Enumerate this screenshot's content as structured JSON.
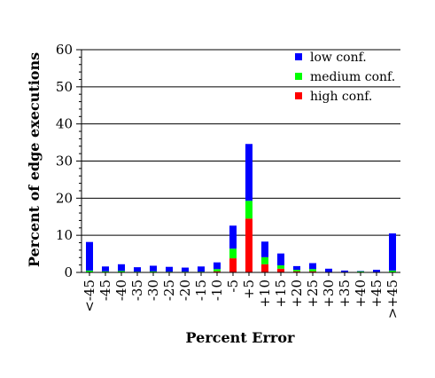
{
  "chart_data": {
    "type": "bar",
    "stacked": true,
    "xlabel": "Percent Error",
    "ylabel": "Percent of edge executions",
    "ylim": [
      0,
      60
    ],
    "yticks": [
      0,
      10,
      20,
      30,
      40,
      50,
      60
    ],
    "grid": "horizontal",
    "legend_position": "top-right",
    "categories": [
      "<-45",
      "-45",
      "-40",
      "-35",
      "-30",
      "-25",
      "-20",
      "-15",
      "-10",
      "-5",
      "+5",
      "+10",
      "+15",
      "+20",
      "+25",
      "+30",
      "+35",
      "+40",
      "+45",
      ">+45"
    ],
    "series": [
      {
        "name": "high conf.",
        "color": "#ff0000",
        "values": [
          0,
          0,
          0,
          0,
          0,
          0,
          0,
          0,
          0.3,
          3.8,
          14.5,
          2.2,
          1.0,
          0.3,
          0.3,
          0,
          0,
          0,
          0,
          0
        ]
      },
      {
        "name": "medium conf.",
        "color": "#00ff00",
        "values": [
          0.5,
          0.3,
          0.4,
          0.2,
          0.3,
          0.2,
          0.2,
          0.2,
          0.6,
          2.6,
          4.8,
          1.9,
          0.9,
          0.4,
          0.6,
          0.1,
          0.1,
          0.3,
          0.1,
          0.5
        ]
      },
      {
        "name": "low conf.",
        "color": "#0000ff",
        "values": [
          7.7,
          1.3,
          1.8,
          1.2,
          1.5,
          1.3,
          1.1,
          1.4,
          1.8,
          6.2,
          15.3,
          4.2,
          3.2,
          1.0,
          1.6,
          0.9,
          0.4,
          0.1,
          0.6,
          10.0
        ]
      }
    ],
    "legend_order": [
      "low conf.",
      "medium conf.",
      "high conf."
    ]
  }
}
